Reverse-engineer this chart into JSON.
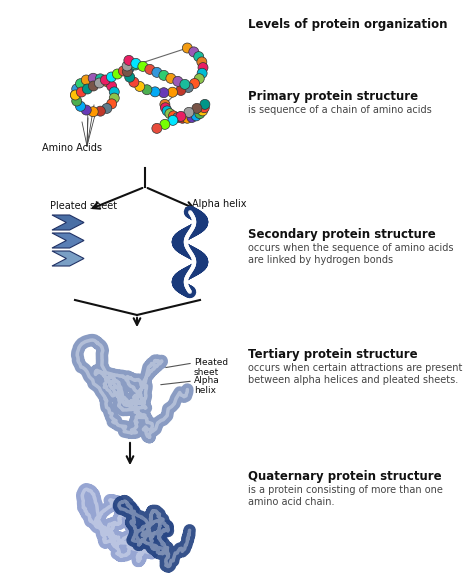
{
  "title": "Levels of protein organization",
  "background_color": "#ffffff",
  "sections": [
    {
      "level": "Primary protein structure",
      "desc": "is sequence of a chain of amino acids",
      "label_extra": "Amino Acids"
    },
    {
      "level": "Secondary protein structure",
      "desc": "occurs when the sequence of amino acids\nare linked by hydrogen bonds",
      "label_left": "Pleated sheet",
      "label_right": "Alpha helix"
    },
    {
      "level": "Tertiary protein structure",
      "desc": "occurs when certain attractions are present\nbetween alpha helices and pleated sheets.",
      "label_pleated": "Pleated\nsheet",
      "label_alpha": "Alpha\nhelix"
    },
    {
      "level": "Quaternary protein structure",
      "desc": "is a protein consisting of more than one\namino acid chain."
    }
  ],
  "text_color": "#111111",
  "arrow_color": "#111111",
  "pleated_colors": [
    "#4a6fa5",
    "#5a7fb5",
    "#7a9fc5"
  ],
  "helix_color": "#1a3a7b",
  "tertiary_color": "#7a8fbb",
  "quaternary_color1": "#8899cc",
  "quaternary_color2": "#1a3a7b",
  "bead_colors": [
    "#e74c3c",
    "#3498db",
    "#2ecc71",
    "#f39c12",
    "#9b59b6",
    "#1abc9c",
    "#e67e22",
    "#e91e63",
    "#00bcd4",
    "#8bc34a",
    "#ff5722",
    "#607d8b",
    "#c0392b",
    "#ff9800",
    "#673ab7",
    "#03a9f4",
    "#4caf50",
    "#ffc107",
    "#f44336",
    "#009688",
    "#795548",
    "#9e9e9e",
    "#e91e63",
    "#00e5ff",
    "#76ff03"
  ]
}
